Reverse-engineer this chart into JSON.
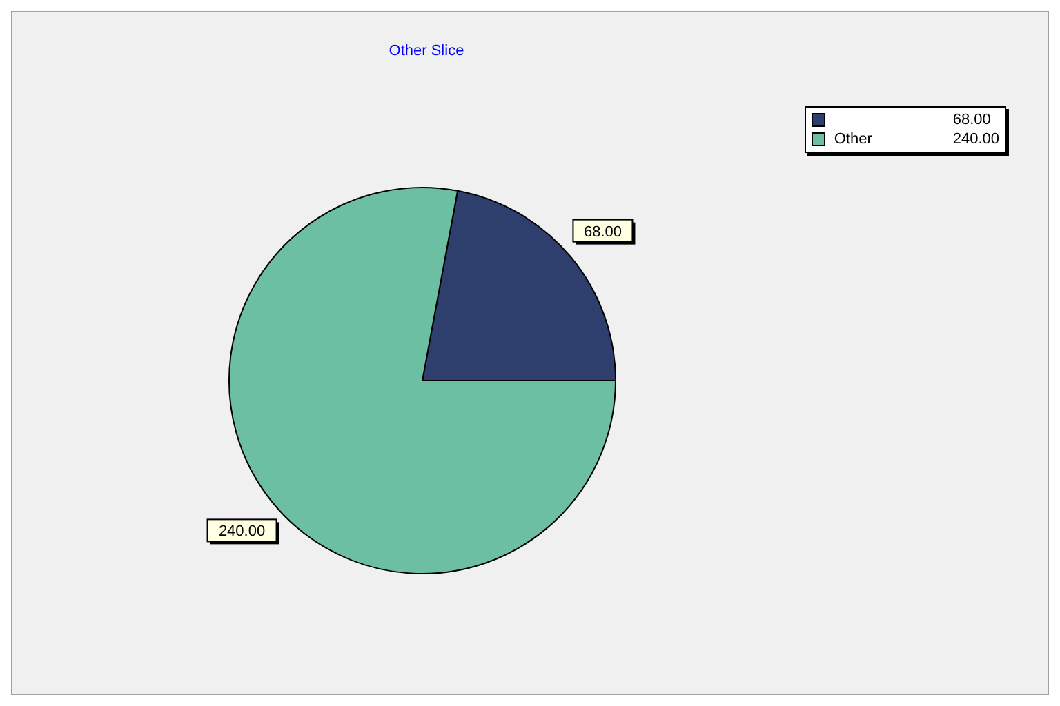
{
  "chart_data": {
    "type": "pie",
    "title": "Other Slice",
    "categories": [
      null,
      "Other"
    ],
    "values": [
      68,
      240
    ],
    "value_labels": [
      "68.00",
      "240.00"
    ],
    "colors": [
      "#2e3f6e",
      "#6dbfa3"
    ],
    "legend": "top right"
  }
}
